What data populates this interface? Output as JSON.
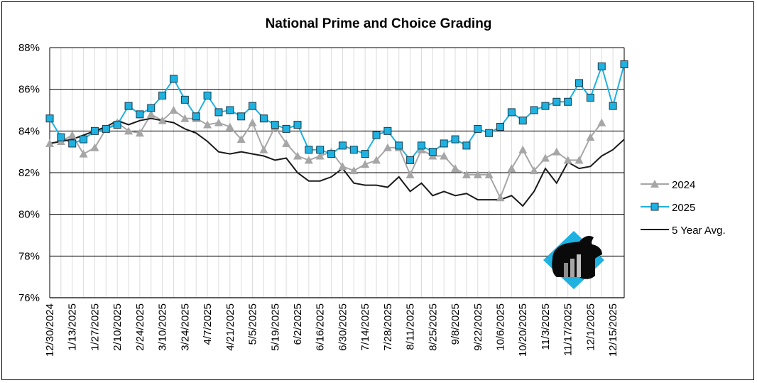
{
  "chart_data": {
    "type": "line",
    "title": "National Prime and Choice Grading",
    "xlabel": "",
    "ylabel": "",
    "ylim": [
      76,
      88
    ],
    "yticks": [
      "76%",
      "78%",
      "80%",
      "82%",
      "84%",
      "86%",
      "88%"
    ],
    "ytick_values": [
      76,
      78,
      80,
      82,
      84,
      86,
      88
    ],
    "grid": "horizontal",
    "legend_position": "right",
    "x_tick_labels": [
      "12/30/2024",
      "1/13/2025",
      "1/27/2025",
      "2/10/2025",
      "2/24/2025",
      "3/10/2025",
      "3/24/2025",
      "4/7/2025",
      "4/21/2025",
      "5/5/2025",
      "5/19/2025",
      "6/2/2025",
      "6/16/2025",
      "6/30/2025",
      "7/14/2025",
      "7/28/2025",
      "8/11/2025",
      "8/25/2025",
      "9/8/2025",
      "9/22/2025",
      "10/6/2025",
      "10/20/2025",
      "11/3/2025",
      "11/17/2025",
      "12/1/2025",
      "12/15/2025"
    ],
    "series": [
      {
        "name": "2024",
        "color": "#a6a6a6",
        "marker": "triangle",
        "values": [
          83.4,
          83.5,
          83.8,
          82.9,
          83.2,
          84.1,
          84.4,
          84.0,
          83.9,
          84.8,
          84.5,
          85.0,
          84.6,
          84.6,
          84.3,
          84.4,
          84.2,
          83.6,
          84.4,
          83.1,
          84.2,
          83.4,
          82.8,
          82.6,
          82.8,
          83.0,
          82.3,
          82.1,
          82.4,
          82.6,
          83.2,
          83.2,
          81.9,
          83.1,
          82.8,
          82.8,
          82.2,
          81.9,
          81.9,
          81.9,
          80.8,
          82.2,
          83.1,
          82.1,
          82.7,
          83.0,
          82.6,
          82.6,
          83.7,
          84.4
        ]
      },
      {
        "name": "2025",
        "color": "#1fb2e1",
        "marker": "square",
        "values": [
          84.6,
          83.7,
          83.4,
          83.6,
          84.0,
          84.1,
          84.3,
          85.2,
          84.8,
          85.1,
          85.7,
          86.5,
          85.5,
          84.7,
          85.7,
          84.9,
          85.0,
          84.7,
          85.2,
          84.6,
          84.3,
          84.1,
          84.3,
          83.1,
          83.1,
          82.9,
          83.3,
          83.1,
          82.9,
          83.8,
          84.0,
          83.3,
          82.6,
          83.3,
          83.0,
          83.4,
          83.6,
          83.3,
          84.1,
          83.9,
          84.2,
          84.9,
          84.5,
          85.0,
          85.2,
          85.4,
          85.4,
          86.3,
          85.6,
          87.1,
          85.2,
          87.2
        ]
      },
      {
        "name": "5 Year Avg.",
        "color": "#1a1a1a",
        "marker": "none",
        "values": [
          83.4,
          83.5,
          83.6,
          83.8,
          84.0,
          84.2,
          84.5,
          84.3,
          84.5,
          84.6,
          84.5,
          84.4,
          84.1,
          83.9,
          83.5,
          83.0,
          82.9,
          83.0,
          82.9,
          82.8,
          82.6,
          82.7,
          82.0,
          81.6,
          81.6,
          81.8,
          82.2,
          81.5,
          81.4,
          81.4,
          81.3,
          81.8,
          81.1,
          81.5,
          80.9,
          81.1,
          80.9,
          81.0,
          80.7,
          80.7,
          80.7,
          80.9,
          80.4,
          81.1,
          82.2,
          81.5,
          82.5,
          82.2,
          82.3,
          82.8,
          83.1,
          83.6
        ]
      }
    ]
  }
}
